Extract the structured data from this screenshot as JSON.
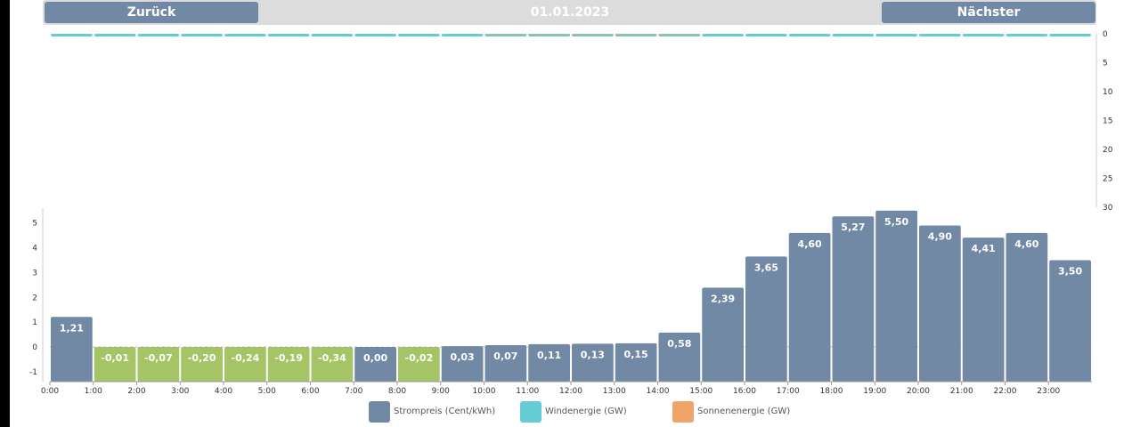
{
  "nav": {
    "back_label": "Zurück",
    "date": "01.01.2023",
    "next_label": "Nächster"
  },
  "colors": {
    "price_positive": "#7189a5",
    "price_negative": "#a4c466",
    "wind": "#64ccd3",
    "solar": "#f0a468",
    "nav_bar": "#dcdcdc",
    "nav_button": "#7189a5"
  },
  "legend": [
    {
      "label": "Strompreis (Cent/kWh)",
      "color": "#7189a5"
    },
    {
      "label": "Windenergie (GW)",
      "color": "#64ccd3"
    },
    {
      "label": "Sonnenenergie (GW)",
      "color": "#f0a468"
    }
  ],
  "chart_data": {
    "type": "bar",
    "categories": [
      "0:00",
      "1:00",
      "2:00",
      "3:00",
      "4:00",
      "5:00",
      "6:00",
      "7:00",
      "8:00",
      "9:00",
      "10:00",
      "11:00",
      "12:00",
      "13:00",
      "14:00",
      "15:00",
      "16:00",
      "17:00",
      "18:00",
      "19:00",
      "20:00",
      "21:00",
      "22:00",
      "23:00"
    ],
    "series": [
      {
        "name": "Strompreis (Cent/kWh)",
        "values": [
          1.21,
          -0.01,
          -0.07,
          -0.2,
          -0.24,
          -0.19,
          -0.34,
          0.0,
          -0.02,
          0.03,
          0.07,
          0.11,
          0.13,
          0.15,
          0.58,
          2.39,
          3.65,
          4.6,
          5.27,
          5.5,
          4.9,
          4.41,
          4.6,
          3.5
        ],
        "labels": [
          "1,21",
          "-0,01",
          "-0,07",
          "-0,20",
          "-0,24",
          "-0,19",
          "-0,34",
          "0,00",
          "-0,02",
          "0,03",
          "0,07",
          "0,11",
          "0,13",
          "0,15",
          "0,58",
          "2,39",
          "3,65",
          "4,60",
          "5,27",
          "5,50",
          "4,90",
          "4,41",
          "4,60",
          "3,50"
        ]
      },
      {
        "name": "Windenergie (GW)",
        "values": [
          0.3,
          0.3,
          0.3,
          0.3,
          0.3,
          0.3,
          0.2,
          0.2,
          0.2,
          0.2,
          0.2,
          0.2,
          0.2,
          0.2,
          0.1,
          0.1,
          0.1,
          0.1,
          0.1,
          0.1,
          0.1,
          0.1,
          0.1,
          0.1
        ]
      },
      {
        "name": "Sonnenenergie (GW)",
        "values": [
          0,
          0,
          0,
          0,
          0,
          0,
          0,
          0,
          0,
          0,
          0.1,
          0.1,
          0.1,
          0.1,
          0.1,
          0,
          0,
          0,
          0,
          0,
          0,
          0,
          0,
          0
        ]
      }
    ],
    "price_axis": {
      "ticks": [
        "-1",
        "0",
        "1",
        "2",
        "3",
        "4",
        "5"
      ],
      "range": [
        -1.4,
        5.6
      ]
    },
    "energy_axis": {
      "ticks": [
        "0",
        "5",
        "10",
        "15",
        "20",
        "25",
        "30"
      ],
      "range": [
        0,
        30
      ],
      "reversed": true
    },
    "zero_line_dashed": true
  }
}
